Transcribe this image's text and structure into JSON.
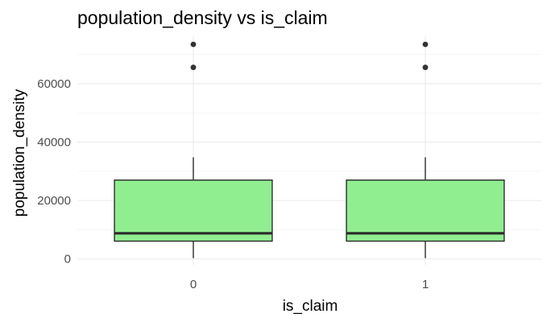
{
  "chart_data": {
    "type": "boxplot",
    "title": "population_density vs is_claim",
    "xlabel": "is_claim",
    "ylabel": "population_density",
    "categories": [
      "0",
      "1"
    ],
    "ylim": [
      -2000,
      76500
    ],
    "yticks": [
      0,
      20000,
      40000,
      60000
    ],
    "ytick_labels": [
      "0",
      "20000",
      "40000",
      "60000"
    ],
    "grid": true,
    "box_fill": "#90EE90",
    "box_stroke": "#2b2b2b",
    "boxes": [
      {
        "category": "0",
        "min": 290,
        "q1": 6112,
        "median": 8794,
        "q3": 27003,
        "max": 34791,
        "outliers": [
          65567,
          73430
        ]
      },
      {
        "category": "1",
        "min": 290,
        "q1": 6112,
        "median": 8794,
        "q3": 27003,
        "max": 34791,
        "outliers": [
          65567,
          73430
        ]
      }
    ]
  }
}
